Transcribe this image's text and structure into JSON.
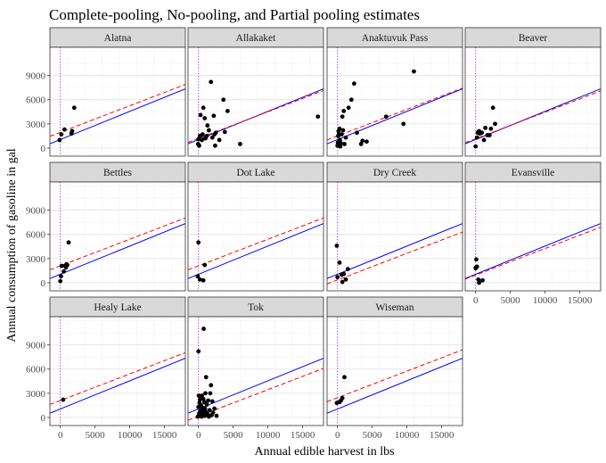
{
  "chart_data": {
    "type": "scatter",
    "title": "Complete-pooling, No-pooling, and Partial pooling estimates",
    "xlabel": "Annual edible harvest in lbs",
    "ylabel": "Annual consumption of gasoline in gal",
    "xlim": [
      -1500,
      18000
    ],
    "ylim": [
      -1000,
      12500
    ],
    "x_ticks": [
      0,
      5000,
      10000,
      15000
    ],
    "x_tick_labels": [
      "0",
      "5000",
      "10000",
      "15000"
    ],
    "y_ticks": [
      0,
      3000,
      6000,
      9000
    ],
    "y_tick_labels": [
      "0",
      "3000",
      "6000",
      "9000"
    ],
    "grid": true,
    "facet_layout": "4 columns x 3 rows",
    "lines": {
      "blue_solid": {
        "color": "#0000ff",
        "style": "solid",
        "intercept": 1050,
        "slope": 0.35
      },
      "red_dashed": {
        "color": "#ff0000",
        "style": "dashed",
        "slope": 0.33
      },
      "purple_dotted": {
        "color": "#a020f0",
        "style": "dotted",
        "x": 0
      }
    },
    "panels": [
      {
        "name": "Alatna",
        "red_intercept": 1950,
        "points": [
          [
            -100,
            1000
          ],
          [
            150,
            1700
          ],
          [
            600,
            2300
          ],
          [
            1600,
            1800
          ],
          [
            1700,
            2100
          ],
          [
            2000,
            5000
          ]
        ]
      },
      {
        "name": "Allakaket",
        "red_intercept": 1200,
        "points": [
          [
            -50,
            500
          ],
          [
            0,
            1100
          ],
          [
            100,
            300
          ],
          [
            200,
            1500
          ],
          [
            300,
            4100
          ],
          [
            500,
            1000
          ],
          [
            600,
            1700
          ],
          [
            700,
            5000
          ],
          [
            900,
            3700
          ],
          [
            1000,
            1200
          ],
          [
            1200,
            1500
          ],
          [
            1300,
            2800
          ],
          [
            1500,
            2200
          ],
          [
            1800,
            8200
          ],
          [
            2000,
            1300
          ],
          [
            2200,
            4000
          ],
          [
            2300,
            1700
          ],
          [
            2400,
            300
          ],
          [
            2500,
            1900
          ],
          [
            3000,
            1000
          ],
          [
            3600,
            6000
          ],
          [
            3800,
            2000
          ],
          [
            4200,
            4600
          ],
          [
            6000,
            500
          ],
          [
            17200,
            3900
          ]
        ]
      },
      {
        "name": "Anaktuvuk Pass",
        "red_intercept": 1500,
        "points": [
          [
            0,
            300
          ],
          [
            50,
            700
          ],
          [
            100,
            1500
          ],
          [
            150,
            2100
          ],
          [
            200,
            1700
          ],
          [
            250,
            400
          ],
          [
            300,
            2400
          ],
          [
            350,
            1000
          ],
          [
            400,
            200
          ],
          [
            500,
            600
          ],
          [
            600,
            1700
          ],
          [
            700,
            3900
          ],
          [
            800,
            2200
          ],
          [
            900,
            4600
          ],
          [
            1000,
            500
          ],
          [
            1200,
            1300
          ],
          [
            1600,
            5000
          ],
          [
            2000,
            6000
          ],
          [
            2400,
            8000
          ],
          [
            2800,
            1900
          ],
          [
            3400,
            500
          ],
          [
            3600,
            900
          ],
          [
            4200,
            800
          ],
          [
            7000,
            3900
          ],
          [
            9500,
            3000
          ],
          [
            11000,
            9500
          ]
        ]
      },
      {
        "name": "Beaver",
        "red_intercept": 1150,
        "points": [
          [
            0,
            200
          ],
          [
            200,
            1300
          ],
          [
            300,
            1900
          ],
          [
            500,
            2100
          ],
          [
            600,
            1800
          ],
          [
            900,
            1900
          ],
          [
            1200,
            1000
          ],
          [
            1400,
            2500
          ],
          [
            1700,
            1600
          ],
          [
            2000,
            1600
          ],
          [
            2200,
            2400
          ],
          [
            2500,
            5000
          ],
          [
            2800,
            3000
          ]
        ]
      },
      {
        "name": "Bettles",
        "red_intercept": 2100,
        "points": [
          [
            0,
            200
          ],
          [
            100,
            800
          ],
          [
            200,
            2100
          ],
          [
            500,
            1400
          ],
          [
            700,
            2100
          ],
          [
            800,
            1900
          ],
          [
            900,
            2300
          ],
          [
            1000,
            2200
          ],
          [
            1200,
            5000
          ]
        ]
      },
      {
        "name": "Dot Lake",
        "red_intercept": 2100,
        "points": [
          [
            -100,
            800
          ],
          [
            0,
            5000
          ],
          [
            200,
            400
          ],
          [
            700,
            300
          ],
          [
            900,
            2200
          ]
        ]
      },
      {
        "name": "Dry Creek",
        "red_intercept": 350,
        "points": [
          [
            -100,
            4600
          ],
          [
            0,
            700
          ],
          [
            300,
            2500
          ],
          [
            600,
            1000
          ],
          [
            700,
            100
          ],
          [
            900,
            1100
          ],
          [
            1200,
            400
          ],
          [
            1500,
            1700
          ]
        ]
      },
      {
        "name": "Evansville",
        "red_intercept": 950,
        "points": [
          [
            0,
            1800
          ],
          [
            50,
            1900
          ],
          [
            100,
            2900
          ],
          [
            200,
            2000
          ],
          [
            400,
            400
          ],
          [
            500,
            0
          ],
          [
            1000,
            300
          ]
        ]
      },
      {
        "name": "Healy Lake",
        "red_intercept": 2100,
        "points": [
          [
            400,
            2200
          ]
        ]
      },
      {
        "name": "Tok",
        "red_intercept": 150,
        "points": [
          [
            -100,
            100
          ],
          [
            0,
            8200
          ],
          [
            0,
            1300
          ],
          [
            50,
            2700
          ],
          [
            100,
            500
          ],
          [
            150,
            1800
          ],
          [
            200,
            2200
          ],
          [
            250,
            800
          ],
          [
            300,
            2600
          ],
          [
            350,
            300
          ],
          [
            400,
            1500
          ],
          [
            450,
            100
          ],
          [
            500,
            2700
          ],
          [
            550,
            1200
          ],
          [
            600,
            400
          ],
          [
            650,
            900
          ],
          [
            700,
            2300
          ],
          [
            750,
            11000
          ],
          [
            800,
            600
          ],
          [
            850,
            1900
          ],
          [
            900,
            200
          ],
          [
            950,
            1100
          ],
          [
            1000,
            3000
          ],
          [
            1050,
            700
          ],
          [
            1100,
            5000
          ],
          [
            1150,
            300
          ],
          [
            1200,
            1600
          ],
          [
            1300,
            400
          ],
          [
            1400,
            2100
          ],
          [
            1500,
            100
          ],
          [
            1600,
            900
          ],
          [
            1700,
            3000
          ],
          [
            1800,
            4000
          ],
          [
            1900,
            300
          ],
          [
            2000,
            2000
          ],
          [
            2100,
            600
          ],
          [
            2300,
            1100
          ],
          [
            2600,
            200
          ]
        ]
      },
      {
        "name": "Wiseman",
        "red_intercept": 2450,
        "points": [
          [
            -100,
            1800
          ],
          [
            300,
            1900
          ],
          [
            500,
            2100
          ],
          [
            700,
            2400
          ],
          [
            1000,
            5000
          ]
        ]
      }
    ]
  }
}
